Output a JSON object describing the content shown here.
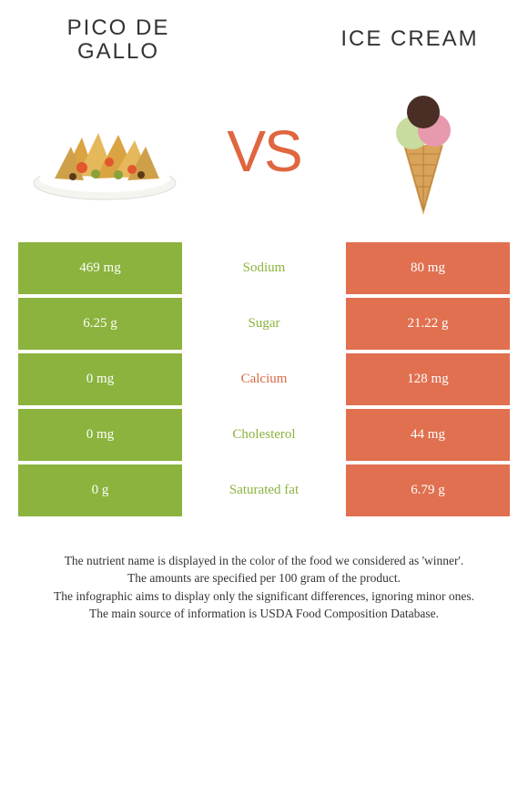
{
  "titles": {
    "left": "PICO DE GALLO",
    "right": "ICE CREAM"
  },
  "vs_text": "VS",
  "colors": {
    "left": "#8bb33d",
    "right": "#e0704f",
    "green_text": "#8bb33d",
    "orange_text": "#d96a47",
    "vs": "#e06640"
  },
  "rows": [
    {
      "left": "469 mg",
      "label": "Sodium",
      "right": "80 mg",
      "winner": "left"
    },
    {
      "left": "6.25 g",
      "label": "Sugar",
      "right": "21.22 g",
      "winner": "left"
    },
    {
      "left": "0 mg",
      "label": "Calcium",
      "right": "128 mg",
      "winner": "right"
    },
    {
      "left": "0 mg",
      "label": "Cholesterol",
      "right": "44 mg",
      "winner": "left"
    },
    {
      "left": "0 g",
      "label": "Saturated fat",
      "right": "6.79 g",
      "winner": "left"
    }
  ],
  "footer": {
    "l1": "The nutrient name is displayed in the color of the food we considered as 'winner'.",
    "l2": "The amounts are specified per 100 gram of the product.",
    "l3": "The infographic aims to display only the significant differences, ignoring minor ones.",
    "l4": "The main source of information is USDA Food Composition Database."
  }
}
